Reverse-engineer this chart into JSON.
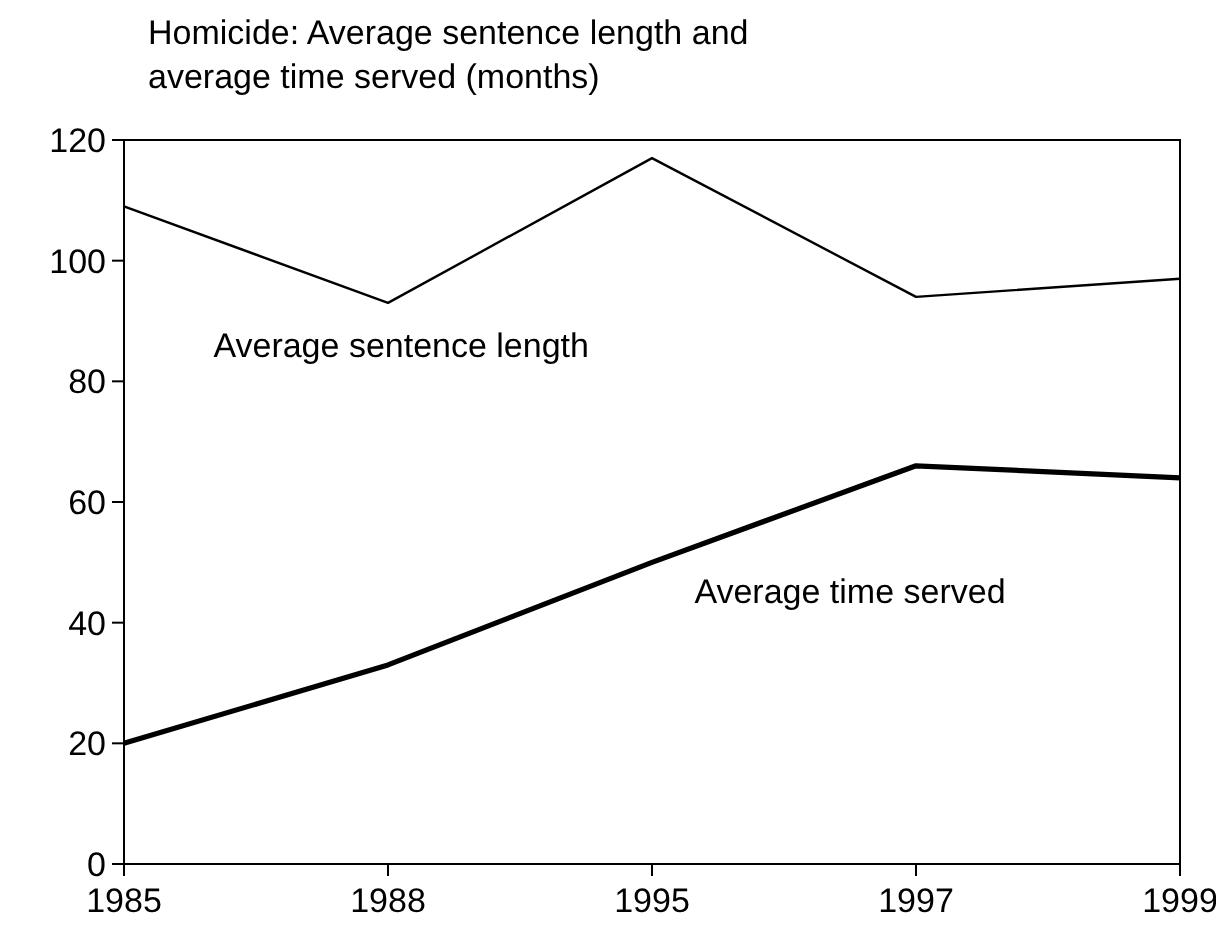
{
  "chart_data": {
    "type": "line",
    "title": "Homicide: Average sentence length and\naverage time served (months)",
    "categories": [
      "1985",
      "1988",
      "1995",
      "1997",
      "1999"
    ],
    "series": [
      {
        "name": "Average sentence length",
        "color": "#000000",
        "values": [
          109,
          93,
          117,
          94,
          97
        ]
      },
      {
        "name": "Average time served",
        "color": "#000000",
        "values": [
          20,
          33,
          50,
          66,
          64
        ]
      }
    ],
    "ylim": [
      0,
      120
    ],
    "yticks": [
      0,
      20,
      40,
      60,
      80,
      100,
      120
    ],
    "grid": false,
    "marker": "none",
    "line_style": "solid"
  }
}
